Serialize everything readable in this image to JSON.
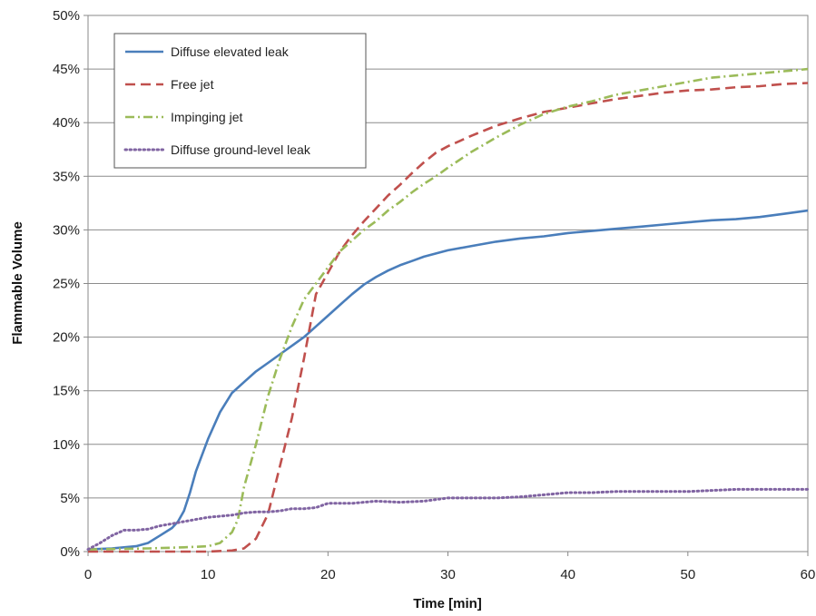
{
  "chart_data": {
    "type": "line",
    "title": "",
    "xlabel": "Time [min]",
    "ylabel": "Flammable Volume",
    "xlim": [
      0,
      60
    ],
    "ylim": [
      0,
      50
    ],
    "x_ticks": [
      "0",
      "10",
      "20",
      "30",
      "40",
      "50",
      "60"
    ],
    "y_ticks": [
      "0%",
      "5%",
      "10%",
      "15%",
      "20%",
      "25%",
      "30%",
      "35%",
      "40%",
      "45%",
      "50%"
    ],
    "grid": "horizontal",
    "legend_position": "top-left",
    "series": [
      {
        "name": "Diffuse elevated leak",
        "color": "#4a7ebb",
        "style": "solid",
        "points": [
          [
            0,
            0.2
          ],
          [
            2,
            0.3
          ],
          [
            4,
            0.5
          ],
          [
            5,
            0.8
          ],
          [
            6,
            1.5
          ],
          [
            7,
            2.2
          ],
          [
            7.5,
            2.8
          ],
          [
            8,
            3.8
          ],
          [
            8.5,
            5.5
          ],
          [
            9,
            7.5
          ],
          [
            10,
            10.5
          ],
          [
            11,
            13
          ],
          [
            12,
            14.8
          ],
          [
            13,
            15.8
          ],
          [
            14,
            16.8
          ],
          [
            15,
            17.6
          ],
          [
            16,
            18.4
          ],
          [
            17,
            19.2
          ],
          [
            18,
            20
          ],
          [
            19,
            21
          ],
          [
            20,
            22
          ],
          [
            21,
            23
          ],
          [
            22,
            24
          ],
          [
            23,
            24.9
          ],
          [
            24,
            25.6
          ],
          [
            25,
            26.2
          ],
          [
            26,
            26.7
          ],
          [
            27,
            27.1
          ],
          [
            28,
            27.5
          ],
          [
            29,
            27.8
          ],
          [
            30,
            28.1
          ],
          [
            32,
            28.5
          ],
          [
            34,
            28.9
          ],
          [
            36,
            29.2
          ],
          [
            38,
            29.4
          ],
          [
            40,
            29.7
          ],
          [
            42,
            29.9
          ],
          [
            44,
            30.1
          ],
          [
            46,
            30.3
          ],
          [
            48,
            30.5
          ],
          [
            50,
            30.7
          ],
          [
            52,
            30.9
          ],
          [
            54,
            31
          ],
          [
            56,
            31.2
          ],
          [
            58,
            31.5
          ],
          [
            60,
            31.8
          ]
        ]
      },
      {
        "name": "Free jet",
        "color": "#c0504d",
        "style": "dashed",
        "points": [
          [
            0,
            0
          ],
          [
            10,
            0
          ],
          [
            12,
            0.1
          ],
          [
            13,
            0.3
          ],
          [
            14,
            1.2
          ],
          [
            15,
            3.5
          ],
          [
            16,
            8
          ],
          [
            17,
            12.5
          ],
          [
            18,
            18
          ],
          [
            19,
            24
          ],
          [
            20,
            26
          ],
          [
            21,
            28
          ],
          [
            22,
            29.5
          ],
          [
            23,
            30.8
          ],
          [
            24,
            32
          ],
          [
            25,
            33.2
          ],
          [
            26,
            34.2
          ],
          [
            27,
            35.3
          ],
          [
            28,
            36.3
          ],
          [
            29,
            37.2
          ],
          [
            30,
            37.8
          ],
          [
            32,
            38.8
          ],
          [
            34,
            39.7
          ],
          [
            36,
            40.4
          ],
          [
            38,
            41
          ],
          [
            40,
            41.4
          ],
          [
            42,
            41.8
          ],
          [
            44,
            42.2
          ],
          [
            46,
            42.5
          ],
          [
            48,
            42.8
          ],
          [
            50,
            43
          ],
          [
            52,
            43.1
          ],
          [
            54,
            43.3
          ],
          [
            56,
            43.4
          ],
          [
            58,
            43.6
          ],
          [
            60,
            43.7
          ]
        ]
      },
      {
        "name": "Impinging jet",
        "color": "#9bbb59",
        "style": "dashdot",
        "points": [
          [
            0,
            0.2
          ],
          [
            5,
            0.3
          ],
          [
            8,
            0.4
          ],
          [
            10,
            0.5
          ],
          [
            11,
            0.8
          ],
          [
            12,
            1.8
          ],
          [
            12.5,
            3
          ],
          [
            13,
            6
          ],
          [
            14,
            10
          ],
          [
            15,
            14.5
          ],
          [
            16,
            18
          ],
          [
            17,
            21
          ],
          [
            18,
            23.5
          ],
          [
            19,
            25
          ],
          [
            20,
            26.5
          ],
          [
            21,
            28
          ],
          [
            22,
            29
          ],
          [
            23,
            30
          ],
          [
            24,
            30.8
          ],
          [
            25,
            31.8
          ],
          [
            26,
            32.6
          ],
          [
            27,
            33.5
          ],
          [
            28,
            34.3
          ],
          [
            29,
            35
          ],
          [
            30,
            35.8
          ],
          [
            32,
            37.3
          ],
          [
            34,
            38.6
          ],
          [
            36,
            39.8
          ],
          [
            38,
            40.8
          ],
          [
            40,
            41.5
          ],
          [
            42,
            42
          ],
          [
            44,
            42.6
          ],
          [
            46,
            43
          ],
          [
            48,
            43.4
          ],
          [
            50,
            43.8
          ],
          [
            52,
            44.2
          ],
          [
            54,
            44.4
          ],
          [
            56,
            44.6
          ],
          [
            58,
            44.8
          ],
          [
            60,
            45
          ]
        ]
      },
      {
        "name": "Diffuse ground-level leak",
        "color": "#8064a2",
        "style": "dotted",
        "points": [
          [
            0,
            0.2
          ],
          [
            1,
            0.8
          ],
          [
            2,
            1.5
          ],
          [
            3,
            2
          ],
          [
            4,
            2
          ],
          [
            5,
            2.1
          ],
          [
            6,
            2.4
          ],
          [
            7,
            2.6
          ],
          [
            8,
            2.8
          ],
          [
            9,
            3
          ],
          [
            10,
            3.2
          ],
          [
            11,
            3.3
          ],
          [
            12,
            3.4
          ],
          [
            13,
            3.6
          ],
          [
            14,
            3.7
          ],
          [
            15,
            3.7
          ],
          [
            16,
            3.8
          ],
          [
            17,
            4
          ],
          [
            18,
            4
          ],
          [
            19,
            4.1
          ],
          [
            20,
            4.5
          ],
          [
            22,
            4.5
          ],
          [
            24,
            4.7
          ],
          [
            26,
            4.6
          ],
          [
            28,
            4.7
          ],
          [
            30,
            5
          ],
          [
            32,
            5
          ],
          [
            34,
            5
          ],
          [
            36,
            5.1
          ],
          [
            38,
            5.3
          ],
          [
            40,
            5.5
          ],
          [
            42,
            5.5
          ],
          [
            44,
            5.6
          ],
          [
            46,
            5.6
          ],
          [
            48,
            5.6
          ],
          [
            50,
            5.6
          ],
          [
            52,
            5.7
          ],
          [
            54,
            5.8
          ],
          [
            56,
            5.8
          ],
          [
            58,
            5.8
          ],
          [
            60,
            5.8
          ]
        ]
      }
    ]
  }
}
